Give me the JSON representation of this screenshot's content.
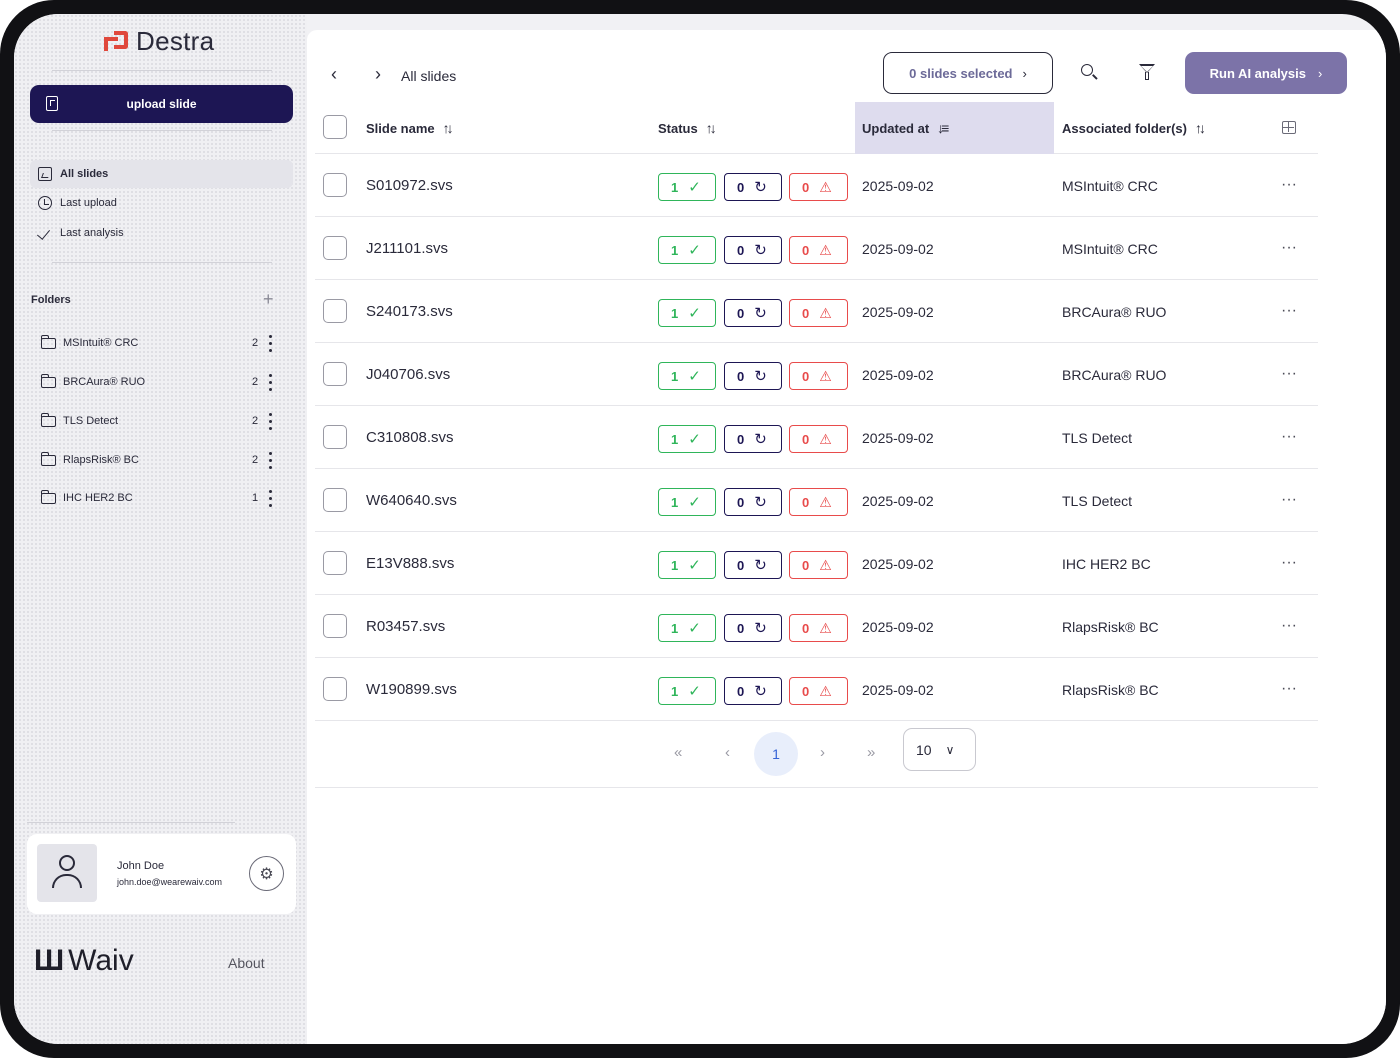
{
  "app": {
    "name": "Destra",
    "upload_label": "upload slide",
    "brand": "Waiv",
    "about_label": "About",
    "accent_color": "#1d1654"
  },
  "sidebar": {
    "nav": [
      {
        "label": "All slides",
        "icon": "gallery-icon",
        "active": true
      },
      {
        "label": "Last upload",
        "icon": "clock-icon",
        "active": false
      },
      {
        "label": "Last analysis",
        "icon": "check-icon",
        "active": false
      }
    ],
    "folders_title": "Folders",
    "add_symbol": "+",
    "folders": [
      {
        "name": "MSIntuit® CRC",
        "count": "2"
      },
      {
        "name": "BRCAura® RUO",
        "count": "2"
      },
      {
        "name": "TLS Detect",
        "count": "2"
      },
      {
        "name": "RlapsRisk® BC",
        "count": "2"
      },
      {
        "name": "IHC HER2 BC",
        "count": "1"
      }
    ]
  },
  "user": {
    "name": "John Doe",
    "email": "john.doe@wearewaiv.com"
  },
  "toolbar": {
    "breadcrumb": "All slides",
    "selected_label": "0 slides selected",
    "run_label": "Run AI analysis"
  },
  "table": {
    "columns": {
      "name": "Slide name",
      "status": "Status",
      "updated": "Updated at",
      "folder": "Associated folder(s)"
    },
    "rows": [
      {
        "name": "S010972.svs",
        "done": "1",
        "pending": "0",
        "errors": "0",
        "updated": "2025-09-02",
        "folder": "MSIntuit® CRC"
      },
      {
        "name": "J211101.svs",
        "done": "1",
        "pending": "0",
        "errors": "0",
        "updated": "2025-09-02",
        "folder": "MSIntuit® CRC"
      },
      {
        "name": "S240173.svs",
        "done": "1",
        "pending": "0",
        "errors": "0",
        "updated": "2025-09-02",
        "folder": "BRCAura® RUO"
      },
      {
        "name": "J040706.svs",
        "done": "1",
        "pending": "0",
        "errors": "0",
        "updated": "2025-09-02",
        "folder": "BRCAura® RUO"
      },
      {
        "name": "C310808.svs",
        "done": "1",
        "pending": "0",
        "errors": "0",
        "updated": "2025-09-02",
        "folder": "TLS Detect"
      },
      {
        "name": "W640640.svs",
        "done": "1",
        "pending": "0",
        "errors": "0",
        "updated": "2025-09-02",
        "folder": "TLS Detect"
      },
      {
        "name": "E13V888.svs",
        "done": "1",
        "pending": "0",
        "errors": "0",
        "updated": "2025-09-02",
        "folder": "IHC HER2 BC"
      },
      {
        "name": "R03457.svs",
        "done": "1",
        "pending": "0",
        "errors": "0",
        "updated": "2025-09-02",
        "folder": "RlapsRisk® BC"
      },
      {
        "name": "W190899.svs",
        "done": "1",
        "pending": "0",
        "errors": "0",
        "updated": "2025-09-02",
        "folder": "RlapsRisk® BC"
      }
    ]
  },
  "pagination": {
    "current_page": "1",
    "page_size": "10"
  }
}
